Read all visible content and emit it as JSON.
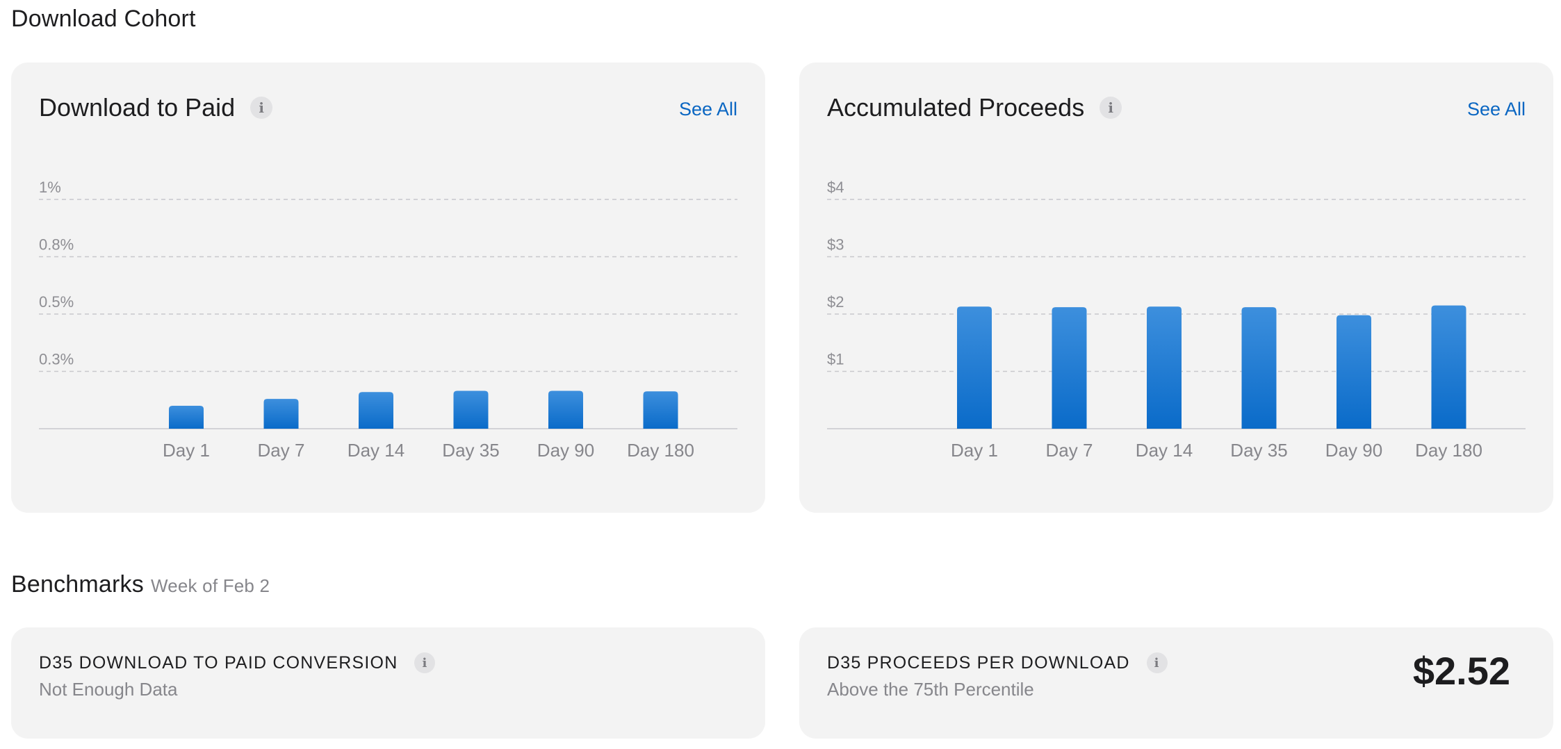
{
  "sections": {
    "cohort_title": "Download Cohort",
    "benchmarks_title": "Benchmarks",
    "benchmarks_subtitle": "Week of Feb 2"
  },
  "cards": {
    "download_to_paid": {
      "title": "Download to Paid",
      "see_all": "See All"
    },
    "accumulated_proceeds": {
      "title": "Accumulated Proceeds",
      "see_all": "See All"
    }
  },
  "icons": {
    "info": "i"
  },
  "benchmarks": {
    "conversion": {
      "label": "D35 DOWNLOAD TO PAID CONVERSION",
      "status": "Not Enough Data"
    },
    "proceeds": {
      "label": "D35 PROCEEDS PER DOWNLOAD",
      "status": "Above the 75th Percentile",
      "value": "$2.52"
    }
  },
  "colors": {
    "bar_top": "#3d8fdd",
    "bar_bottom": "#0a6bc9",
    "link": "#0a66c2",
    "card_bg": "#f3f3f3"
  },
  "chart_data": [
    {
      "type": "bar",
      "categories": [
        "Day 1",
        "Day 7",
        "Day 14",
        "Day 35",
        "Day 90",
        "Day 180"
      ],
      "values": [
        0.1,
        0.13,
        0.16,
        0.165,
        0.165,
        0.163
      ],
      "ytick_values": [
        0.25,
        0.5,
        0.75,
        1.0
      ],
      "ytick_labels": [
        "0.3%",
        "0.5%",
        "0.8%",
        "1%"
      ],
      "ylim": [
        0,
        1.0
      ],
      "grid": true
    },
    {
      "type": "bar",
      "categories": [
        "Day 1",
        "Day 7",
        "Day 14",
        "Day 35",
        "Day 90",
        "Day 180"
      ],
      "values": [
        2.13,
        2.12,
        2.13,
        2.12,
        1.98,
        2.15
      ],
      "ytick_values": [
        1,
        2,
        3,
        4
      ],
      "ytick_labels": [
        "$1",
        "$2",
        "$3",
        "$4"
      ],
      "ylim": [
        0,
        4
      ],
      "grid": true
    }
  ]
}
